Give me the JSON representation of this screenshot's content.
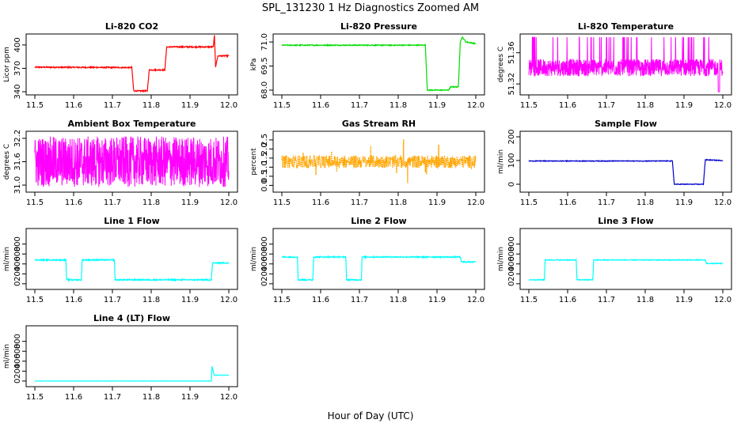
{
  "figure": {
    "title": "SPL_131230  1 Hz Diagnostics Zoomed AM",
    "xlabel": "Hour of Day (UTC)"
  },
  "chart_data": [
    {
      "type": "line",
      "title": "Li-820 CO2",
      "ylabel": "Licor ppm",
      "color": "#ff0000",
      "xlim": [
        11.5,
        12.0
      ],
      "ylim": [
        340,
        410
      ],
      "xticks": [
        "11.5",
        "11.6",
        "11.7",
        "11.8",
        "11.9",
        "12.0"
      ],
      "xtick_values": [
        11.5,
        11.6,
        11.7,
        11.8,
        11.9,
        12.0
      ],
      "yticks": [
        "340",
        "370",
        "400"
      ],
      "ytick_values": [
        340,
        370,
        400
      ],
      "noise": 0.8,
      "segments": [
        [
          11.5,
          371.5
        ],
        [
          11.75,
          371
        ],
        [
          11.755,
          341
        ],
        [
          11.79,
          341
        ],
        [
          11.795,
          368
        ],
        [
          11.835,
          368
        ],
        [
          11.84,
          397.5
        ],
        [
          11.96,
          397.5
        ],
        [
          11.963,
          412
        ],
        [
          11.966,
          372
        ],
        [
          11.972,
          386
        ],
        [
          12.0,
          386
        ]
      ]
    },
    {
      "type": "line",
      "title": "Li-820 Pressure",
      "ylabel": "kPa",
      "color": "#00dd00",
      "xlim": [
        11.5,
        12.0
      ],
      "ylim": [
        67.9,
        71.3
      ],
      "xticks": [
        "11.5",
        "11.6",
        "11.7",
        "11.8",
        "11.9",
        "12.0"
      ],
      "xtick_values": [
        11.5,
        11.6,
        11.7,
        11.8,
        11.9,
        12.0
      ],
      "yticks": [
        "68.0",
        "69.5",
        "71.0"
      ],
      "ytick_values": [
        68.0,
        69.5,
        71.0
      ],
      "noise": 0.03,
      "segments": [
        [
          11.5,
          70.8
        ],
        [
          11.87,
          70.8
        ],
        [
          11.875,
          68.0
        ],
        [
          11.93,
          68.0
        ],
        [
          11.935,
          68.2
        ],
        [
          11.955,
          68.2
        ],
        [
          11.96,
          71.0
        ],
        [
          11.965,
          71.3
        ],
        [
          11.975,
          71.0
        ],
        [
          12.0,
          70.9
        ]
      ]
    },
    {
      "type": "noise",
      "title": "Li-820 Temperature",
      "ylabel": "degrees C",
      "color": "#ff00ff",
      "xlim": [
        11.5,
        12.0
      ],
      "ylim": [
        51.31,
        51.38
      ],
      "xticks": [
        "11.5",
        "11.6",
        "11.7",
        "11.8",
        "11.9",
        "12.0"
      ],
      "xtick_values": [
        11.5,
        11.6,
        11.7,
        11.8,
        11.9,
        12.0
      ],
      "yticks": [
        "51.32",
        "51.36"
      ],
      "ytick_values": [
        51.32,
        51.36
      ],
      "base_lo": 51.33,
      "base_hi": 51.352,
      "spike_hi": 51.38,
      "spike_rate": 0.06,
      "dip": [
        11.99,
        51.31
      ]
    },
    {
      "type": "noise",
      "title": "Ambient Box Temperature",
      "ylabel": "degrees C",
      "color": "#ff00ff",
      "xlim": [
        11.5,
        12.0
      ],
      "ylim": [
        30.9,
        32.3
      ],
      "xticks": [
        "11.5",
        "11.6",
        "11.7",
        "11.8",
        "11.9",
        "12.0"
      ],
      "xtick_values": [
        11.5,
        11.6,
        11.7,
        11.8,
        11.9,
        12.0
      ],
      "yticks": [
        "31.0",
        "31.6",
        "32.2"
      ],
      "ytick_values": [
        31.0,
        31.6,
        32.2
      ],
      "base_lo": 30.95,
      "base_hi": 32.25,
      "spike_hi": 32.3,
      "spike_rate": 0.0
    },
    {
      "type": "scatter",
      "title": "Gas Stream RH",
      "ylabel": "percent",
      "color": "#ffa500",
      "edge": "#888800",
      "xlim": [
        11.5,
        12.0
      ],
      "ylim": [
        -0.2,
        2.8
      ],
      "xticks": [
        "11.5",
        "11.6",
        "11.7",
        "11.8",
        "11.9",
        "12.0"
      ],
      "xtick_values": [
        11.5,
        11.6,
        11.7,
        11.8,
        11.9,
        12.0
      ],
      "yticks": [
        "0.0",
        "0.5",
        "1.0",
        "1.5",
        "2.0",
        "2.5"
      ],
      "ytick_values": [
        0.0,
        0.5,
        1.0,
        1.5,
        2.0,
        2.5
      ],
      "center": 1.3,
      "spread": 0.35
    },
    {
      "type": "line",
      "title": "Sample Flow",
      "ylabel": "ml/min",
      "color": "#0000cc",
      "xlim": [
        11.5,
        12.0
      ],
      "ylim": [
        -20,
        210
      ],
      "xticks": [
        "11.5",
        "11.6",
        "11.7",
        "11.8",
        "11.9",
        "12.0"
      ],
      "xtick_values": [
        11.5,
        11.6,
        11.7,
        11.8,
        11.9,
        12.0
      ],
      "yticks": [
        "0",
        "100",
        "200"
      ],
      "ytick_values": [
        0,
        100,
        200
      ],
      "noise": 1.5,
      "segments": [
        [
          11.5,
          98
        ],
        [
          11.87,
          98
        ],
        [
          11.875,
          0
        ],
        [
          11.95,
          0
        ],
        [
          11.955,
          103
        ],
        [
          12.0,
          100
        ]
      ]
    },
    {
      "type": "line",
      "title": "Line 1 Flow",
      "ylabel": "ml/min",
      "color": "#00ffff",
      "xlim": [
        11.5,
        12.0
      ],
      "ylim": [
        -50,
        1050
      ],
      "xticks": [
        "11.5",
        "11.6",
        "11.7",
        "11.8",
        "11.9",
        "12.0"
      ],
      "xtick_values": [
        11.5,
        11.6,
        11.7,
        11.8,
        11.9,
        12.0
      ],
      "yticks": [
        "0",
        "200",
        "400",
        "600",
        "800"
      ],
      "ytick_values": [
        0,
        200,
        400,
        600,
        800
      ],
      "noise": 12,
      "segments": [
        [
          11.5,
          480
        ],
        [
          11.58,
          480
        ],
        [
          11.582,
          80
        ],
        [
          11.62,
          80
        ],
        [
          11.622,
          480
        ],
        [
          11.705,
          480
        ],
        [
          11.707,
          80
        ],
        [
          11.955,
          80
        ],
        [
          11.958,
          420
        ],
        [
          12.0,
          420
        ]
      ]
    },
    {
      "type": "line",
      "title": "Line 2 Flow",
      "ylabel": "ml/min",
      "color": "#00ffff",
      "xlim": [
        11.5,
        12.0
      ],
      "ylim": [
        -50,
        1050
      ],
      "xticks": [
        "11.5",
        "11.6",
        "11.7",
        "11.8",
        "11.9",
        "12.0"
      ],
      "xtick_values": [
        11.5,
        11.6,
        11.7,
        11.8,
        11.9,
        12.0
      ],
      "yticks": [
        "0",
        "200",
        "400",
        "600",
        "800"
      ],
      "ytick_values": [
        0,
        200,
        400,
        600,
        800
      ],
      "noise": 12,
      "segments": [
        [
          11.5,
          540
        ],
        [
          11.54,
          540
        ],
        [
          11.542,
          80
        ],
        [
          11.58,
          80
        ],
        [
          11.582,
          540
        ],
        [
          11.665,
          540
        ],
        [
          11.667,
          80
        ],
        [
          11.705,
          80
        ],
        [
          11.707,
          540
        ],
        [
          11.96,
          540
        ],
        [
          11.963,
          440
        ],
        [
          12.0,
          440
        ]
      ]
    },
    {
      "type": "line",
      "title": "Line 3 Flow",
      "ylabel": "ml/min",
      "color": "#00ffff",
      "xlim": [
        11.5,
        12.0
      ],
      "ylim": [
        -50,
        1050
      ],
      "xticks": [
        "11.5",
        "11.6",
        "11.7",
        "11.8",
        "11.9",
        "12.0"
      ],
      "xtick_values": [
        11.5,
        11.6,
        11.7,
        11.8,
        11.9,
        12.0
      ],
      "yticks": [
        "0",
        "200",
        "400",
        "600",
        "800"
      ],
      "ytick_values": [
        0,
        200,
        400,
        600,
        800
      ],
      "noise": 8,
      "segments": [
        [
          11.5,
          80
        ],
        [
          11.54,
          80
        ],
        [
          11.542,
          480
        ],
        [
          11.622,
          480
        ],
        [
          11.624,
          80
        ],
        [
          11.665,
          80
        ],
        [
          11.667,
          480
        ],
        [
          11.955,
          480
        ],
        [
          11.958,
          410
        ],
        [
          12.0,
          410
        ]
      ]
    },
    {
      "type": "line",
      "title": "Line 4 (LT) Flow",
      "ylabel": "ml/min",
      "color": "#00ffff",
      "xlim": [
        11.5,
        12.0
      ],
      "ylim": [
        -50,
        1050
      ],
      "xticks": [
        "11.5",
        "11.6",
        "11.7",
        "11.8",
        "11.9",
        "12.0"
      ],
      "xtick_values": [
        11.5,
        11.6,
        11.7,
        11.8,
        11.9,
        12.0
      ],
      "yticks": [
        "0",
        "200",
        "400",
        "600",
        "800"
      ],
      "ytick_values": [
        0,
        200,
        400,
        600,
        800
      ],
      "noise": 2,
      "segments": [
        [
          11.5,
          0
        ],
        [
          11.955,
          0
        ],
        [
          11.957,
          300
        ],
        [
          11.962,
          120
        ],
        [
          12.0,
          120
        ]
      ]
    }
  ]
}
